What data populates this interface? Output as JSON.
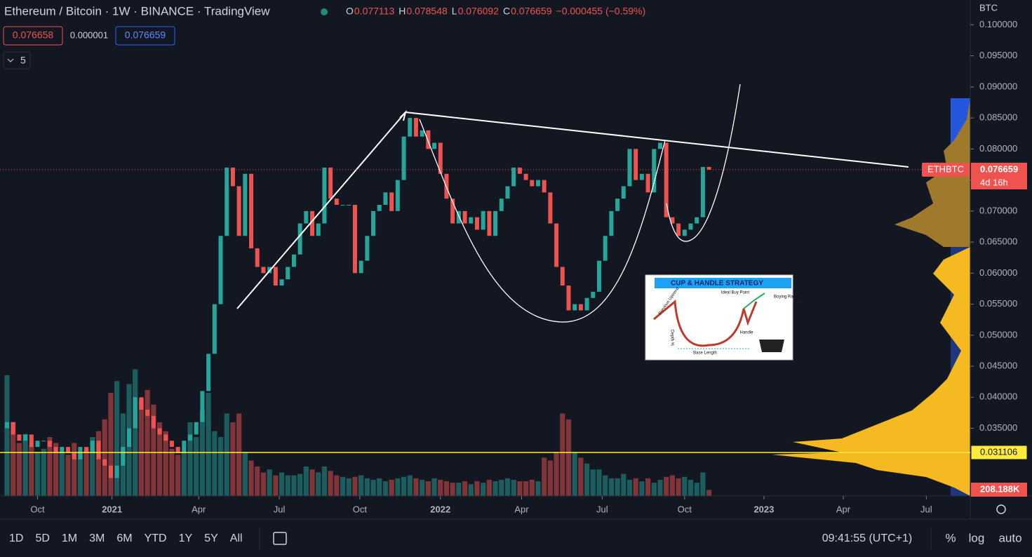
{
  "chart_data": {
    "type": "candlestick",
    "title": "Ethereum / Bitcoin · 1W · BINANCE · TradingView",
    "ohlc": [
      {
        "key": "O",
        "value": "0.077113"
      },
      {
        "key": "H",
        "value": "0.078548"
      },
      {
        "key": "L",
        "value": "0.076092"
      },
      {
        "key": "C",
        "value": "0.076659"
      }
    ],
    "change": "−0.000455 (−0.59%)",
    "sell": "0.076658",
    "spread": "0.000001",
    "buy": "0.076659",
    "indicators": "5",
    "currency": "BTC",
    "symbol": "ETHBTC",
    "countdown": "4d 16h",
    "last": 0.076659,
    "level": 0.031106,
    "volume_last_label": "208.188K",
    "open": [
      0.035,
      0.036,
      0.034,
      0.033,
      0.034,
      0.032,
      0.033,
      0.033,
      0.032,
      0.031,
      0.032,
      0.031,
      0.03,
      0.032,
      0.031,
      0.033,
      0.03,
      0.029,
      0.027,
      0.029,
      0.032,
      0.035,
      0.04,
      0.038,
      0.037,
      0.035,
      0.034,
      0.033,
      0.032,
      0.031,
      0.033,
      0.034,
      0.036,
      0.041,
      0.047,
      0.055,
      0.066,
      0.077,
      0.074,
      0.066,
      0.076,
      0.064,
      0.061,
      0.06,
      0.061,
      0.058,
      0.059,
      0.061,
      0.063,
      0.068,
      0.07,
      0.066,
      0.068,
      0.077,
      0.072,
      0.071,
      0.071,
      0.071,
      0.06,
      0.062,
      0.066,
      0.07,
      0.071,
      0.073,
      0.07,
      0.075,
      0.082,
      0.085,
      0.082,
      0.083,
      0.08,
      0.081,
      0.076,
      0.072,
      0.068,
      0.07,
      0.068,
      0.069,
      0.067,
      0.07,
      0.066,
      0.07,
      0.072,
      0.074,
      0.077,
      0.076,
      0.075,
      0.074,
      0.075,
      0.073,
      0.068,
      0.061,
      0.058,
      0.054,
      0.055,
      0.054,
      0.056,
      0.057,
      0.062,
      0.066,
      0.07,
      0.072,
      0.074,
      0.08,
      0.075,
      0.076,
      0.073,
      0.08,
      0.081,
      0.069,
      0.068,
      0.066,
      0.067,
      0.068,
      0.069,
      0.077113
    ],
    "close": [
      0.036,
      0.034,
      0.033,
      0.034,
      0.032,
      0.033,
      0.033,
      0.032,
      0.031,
      0.032,
      0.031,
      0.03,
      0.032,
      0.031,
      0.033,
      0.03,
      0.029,
      0.027,
      0.029,
      0.032,
      0.035,
      0.04,
      0.038,
      0.037,
      0.035,
      0.034,
      0.033,
      0.032,
      0.031,
      0.033,
      0.034,
      0.036,
      0.041,
      0.047,
      0.055,
      0.066,
      0.077,
      0.074,
      0.066,
      0.076,
      0.064,
      0.061,
      0.06,
      0.061,
      0.058,
      0.059,
      0.061,
      0.063,
      0.068,
      0.07,
      0.066,
      0.068,
      0.077,
      0.072,
      0.071,
      0.071,
      0.071,
      0.06,
      0.062,
      0.066,
      0.07,
      0.071,
      0.073,
      0.07,
      0.075,
      0.082,
      0.085,
      0.082,
      0.083,
      0.08,
      0.081,
      0.076,
      0.072,
      0.068,
      0.07,
      0.068,
      0.069,
      0.067,
      0.07,
      0.066,
      0.07,
      0.072,
      0.074,
      0.077,
      0.076,
      0.075,
      0.074,
      0.075,
      0.073,
      0.068,
      0.061,
      0.058,
      0.054,
      0.055,
      0.054,
      0.056,
      0.057,
      0.062,
      0.066,
      0.07,
      0.072,
      0.074,
      0.08,
      0.075,
      0.076,
      0.073,
      0.08,
      0.081,
      0.069,
      0.068,
      0.066,
      0.067,
      0.068,
      0.069,
      0.0771,
      0.076659
    ],
    "volume": [
      4100,
      2500,
      1800,
      2100,
      1700,
      1500,
      1600,
      2000,
      1800,
      1500,
      1400,
      1800,
      1500,
      1600,
      2000,
      2200,
      2600,
      3500,
      3900,
      2800,
      3800,
      4300,
      3300,
      3600,
      3100,
      2500,
      2200,
      1600,
      1400,
      1500,
      2500,
      2000,
      2900,
      3500,
      2200,
      2000,
      2800,
      2500,
      2800,
      1500,
      1200,
      1000,
      800,
      900,
      700,
      800,
      700,
      700,
      750,
      1000,
      900,
      800,
      1000,
      850,
      700,
      650,
      600,
      650,
      700,
      600,
      550,
      600,
      500,
      550,
      600,
      650,
      700,
      600,
      550,
      500,
      600,
      550,
      500,
      450,
      450,
      500,
      400,
      500,
      450,
      550,
      500,
      550,
      600,
      550,
      500,
      500,
      550,
      500,
      1300,
      1200,
      1500,
      2800,
      2600,
      1500,
      1300,
      1100,
      900,
      900,
      700,
      600,
      600,
      750,
      550,
      600,
      500,
      600,
      450,
      550,
      650,
      700,
      600,
      650,
      550,
      450,
      800,
      208.188
    ],
    "up_color": "#26a69a",
    "down_color": "#ef5350",
    "xlim": [
      -1.15,
      157.8
    ],
    "xticks": [
      {
        "value": 5,
        "label": "Oct"
      },
      {
        "value": 17.2,
        "label": "2021"
      },
      {
        "value": 31.4,
        "label": "Apr"
      },
      {
        "value": 44.6,
        "label": "Jul"
      },
      {
        "value": 57.8,
        "label": "Oct"
      },
      {
        "value": 71,
        "label": "2022"
      },
      {
        "value": 84.3,
        "label": "Apr"
      },
      {
        "value": 97.5,
        "label": "Jul"
      },
      {
        "value": 111,
        "label": "Oct"
      },
      {
        "value": 124,
        "label": "2023"
      },
      {
        "value": 137,
        "label": "Apr"
      },
      {
        "value": 150.6,
        "label": "Jul"
      }
    ],
    "ylim": [
      0.0241,
      0.104
    ],
    "yticks": [
      {
        "value": 0.035,
        "label": "0.035000"
      },
      {
        "value": 0.04,
        "label": "0.040000"
      },
      {
        "value": 0.045,
        "label": "0.045000"
      },
      {
        "value": 0.05,
        "label": "0.050000"
      },
      {
        "value": 0.055,
        "label": "0.055000"
      },
      {
        "value": 0.06,
        "label": "0.060000"
      },
      {
        "value": 0.065,
        "label": "0.065000"
      },
      {
        "value": 0.07,
        "label": "0.070000"
      },
      {
        "value": 0.075,
        "label": "0.075000"
      },
      {
        "value": 0.08,
        "label": "0.080000"
      },
      {
        "value": 0.085,
        "label": "0.085000"
      },
      {
        "value": 0.09,
        "label": "0.090000"
      },
      {
        "value": 0.095,
        "label": "0.095000"
      },
      {
        "value": 0.1,
        "label": "0.100000"
      }
    ],
    "inset": {
      "title": "CUP & HANDLE STRATEGY",
      "buy_point": "Ideal Buy Point",
      "buy_range": "Buying Range",
      "uptrend": "Previous Uptrend",
      "depth": "Depth %",
      "handle": "Handle",
      "base": "Base Length"
    },
    "toolbar": {
      "ranges": [
        "1D",
        "5D",
        "1M",
        "3M",
        "6M",
        "YTD",
        "1Y",
        "5Y",
        "All"
      ],
      "time": "09:41:55 (UTC+1)",
      "percent": "%",
      "log": "log",
      "auto": "auto"
    }
  }
}
